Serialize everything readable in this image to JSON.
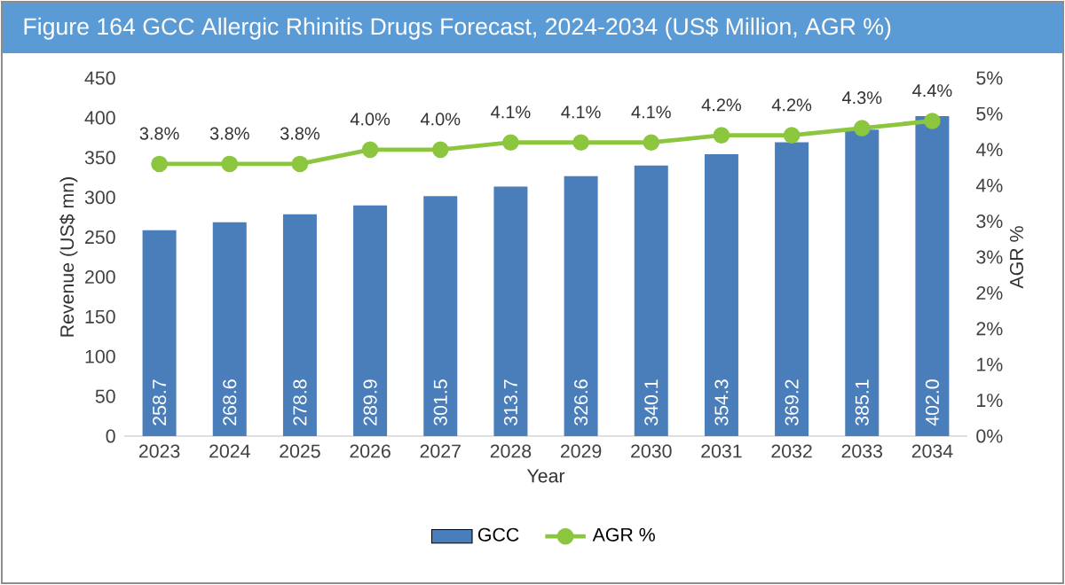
{
  "chart_data": {
    "type": "bar",
    "title": "Figure 164 GCC Allergic Rhinitis Drugs Forecast, 2024-2034 (US$ Million, AGR %)",
    "xlabel": "Year",
    "ylabel": "Revenue (US$ mn)",
    "y2label": "AGR %",
    "categories": [
      "2023",
      "2024",
      "2025",
      "2026",
      "2027",
      "2028",
      "2029",
      "2030",
      "2031",
      "2032",
      "2033",
      "2034"
    ],
    "series": [
      {
        "name": "GCC",
        "color": "#4a7ebb",
        "values": [
          258.7,
          268.6,
          278.8,
          289.9,
          301.5,
          313.7,
          326.6,
          340.1,
          354.3,
          369.2,
          385.1,
          402.0
        ],
        "value_labels": [
          "258.7",
          "268.6",
          "278.8",
          "289.9",
          "301.5",
          "313.7",
          "326.6",
          "340.1",
          "354.3",
          "369.2",
          "385.1",
          "402.0"
        ]
      },
      {
        "name": "AGR %",
        "type": "line",
        "axis": "y2",
        "color": "#8cc63f",
        "values": [
          3.8,
          3.8,
          3.8,
          4.0,
          4.0,
          4.1,
          4.1,
          4.1,
          4.2,
          4.2,
          4.3,
          4.4
        ],
        "value_labels": [
          "3.8%",
          "3.8%",
          "3.8%",
          "4.0%",
          "4.0%",
          "4.1%",
          "4.1%",
          "4.1%",
          "4.2%",
          "4.2%",
          "4.3%",
          "4.4%"
        ]
      }
    ],
    "ylim": [
      0,
      450
    ],
    "yticks": [
      0,
      50,
      100,
      150,
      200,
      250,
      300,
      350,
      400,
      450
    ],
    "y2lim": [
      0,
      5
    ],
    "y2ticks": [
      {
        "value": 0,
        "label": "0%"
      },
      {
        "value": 0.5,
        "label": "1%"
      },
      {
        "value": 1,
        "label": "1%"
      },
      {
        "value": 1.5,
        "label": "2%"
      },
      {
        "value": 2,
        "label": "2%"
      },
      {
        "value": 2.5,
        "label": "3%"
      },
      {
        "value": 3,
        "label": "3%"
      },
      {
        "value": 3.5,
        "label": "4%"
      },
      {
        "value": 4,
        "label": "4%"
      },
      {
        "value": 4.5,
        "label": "5%"
      },
      {
        "value": 5,
        "label": "5%"
      }
    ],
    "marker": "circle",
    "legend": "bottom",
    "grid": false
  }
}
